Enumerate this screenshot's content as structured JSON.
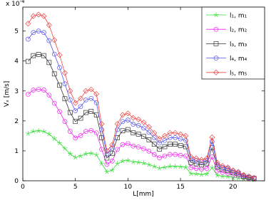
{
  "chart_data": {
    "type": "line",
    "multiplier": {
      "base": "x 10",
      "power": "-4"
    },
    "x_label": "L[mm]",
    "y_label": "Vₓ [m/s]",
    "xlim": [
      0,
      23
    ],
    "xticks": [
      0,
      5,
      10,
      15,
      20
    ],
    "ylim": [
      0,
      5.8
    ],
    "yticks": [
      0,
      1,
      2,
      3,
      4,
      5
    ],
    "grid": false,
    "legend": "upper right",
    "x": [
      0.5,
      1,
      1.5,
      2,
      2.5,
      3,
      3.5,
      4,
      4.5,
      5,
      5.5,
      6,
      6.5,
      7,
      7.5,
      8,
      8.5,
      9,
      9.5,
      10,
      10.5,
      11,
      11.5,
      12,
      12.5,
      13,
      13.5,
      14,
      14.5,
      15,
      15.5,
      16,
      16.5,
      17,
      17.5,
      18,
      18.5,
      19,
      19.5,
      20,
      20.5,
      21,
      21.5,
      22
    ],
    "series": [
      {
        "name": "l₁, m₁",
        "color": "#33dd33",
        "marker": "star",
        "values": [
          1.58,
          1.65,
          1.67,
          1.65,
          1.56,
          1.41,
          1.26,
          1.08,
          0.9,
          0.78,
          0.83,
          0.9,
          0.92,
          0.87,
          0.57,
          0.3,
          0.36,
          0.57,
          0.66,
          0.68,
          0.63,
          0.62,
          0.59,
          0.54,
          0.48,
          0.42,
          0.45,
          0.48,
          0.48,
          0.47,
          0.45,
          0.24,
          0.23,
          0.21,
          0.23,
          0.44,
          0.18,
          0.15,
          0.14,
          0.11,
          0.09,
          0.06,
          0.05,
          0.03
        ]
      },
      {
        "name": "l₂, m₂",
        "color": "#ee22ee",
        "marker": "circle",
        "values": [
          2.89,
          3.03,
          3.05,
          3.03,
          2.86,
          2.59,
          2.31,
          1.98,
          1.65,
          1.43,
          1.51,
          1.65,
          1.68,
          1.6,
          1.05,
          0.55,
          0.66,
          1.05,
          1.21,
          1.24,
          1.16,
          1.13,
          1.07,
          0.99,
          0.88,
          0.77,
          0.83,
          0.88,
          0.88,
          0.85,
          0.83,
          0.44,
          0.41,
          0.39,
          0.41,
          0.8,
          0.33,
          0.28,
          0.25,
          0.19,
          0.17,
          0.11,
          0.08,
          0.06
        ]
      },
      {
        "name": "l₃, m₃",
        "color": "#333333",
        "marker": "square",
        "values": [
          3.99,
          4.18,
          4.22,
          4.18,
          3.95,
          3.57,
          3.19,
          2.74,
          2.28,
          1.98,
          2.09,
          2.28,
          2.32,
          2.2,
          1.44,
          0.76,
          0.91,
          1.44,
          1.67,
          1.71,
          1.6,
          1.56,
          1.48,
          1.37,
          1.22,
          1.06,
          1.14,
          1.22,
          1.22,
          1.18,
          1.14,
          0.61,
          0.57,
          0.53,
          0.57,
          1.1,
          0.46,
          0.38,
          0.34,
          0.27,
          0.23,
          0.15,
          0.11,
          0.08
        ]
      },
      {
        "name": "l₄, m₄",
        "color": "#5555ee",
        "marker": "circle",
        "values": [
          4.73,
          4.95,
          5.0,
          4.95,
          4.68,
          4.23,
          3.78,
          3.24,
          2.7,
          2.34,
          2.48,
          2.7,
          2.75,
          2.61,
          1.71,
          0.9,
          1.08,
          1.71,
          1.98,
          2.03,
          1.89,
          1.85,
          1.76,
          1.62,
          1.44,
          1.26,
          1.35,
          1.44,
          1.44,
          1.4,
          1.35,
          0.72,
          0.68,
          0.63,
          0.68,
          1.31,
          0.54,
          0.45,
          0.41,
          0.32,
          0.27,
          0.18,
          0.14,
          0.09
        ]
      },
      {
        "name": "l₅, m₅",
        "color": "#ee4444",
        "marker": "diamond",
        "values": [
          5.25,
          5.5,
          5.55,
          5.5,
          5.2,
          4.7,
          4.2,
          3.6,
          3.0,
          2.6,
          2.75,
          3.0,
          3.05,
          2.9,
          1.9,
          1.0,
          1.2,
          1.9,
          2.2,
          2.25,
          2.1,
          2.05,
          1.95,
          1.8,
          1.6,
          1.4,
          1.5,
          1.6,
          1.6,
          1.55,
          1.5,
          0.8,
          0.75,
          0.7,
          0.75,
          1.45,
          0.6,
          0.5,
          0.45,
          0.35,
          0.3,
          0.2,
          0.15,
          0.1
        ]
      }
    ]
  }
}
